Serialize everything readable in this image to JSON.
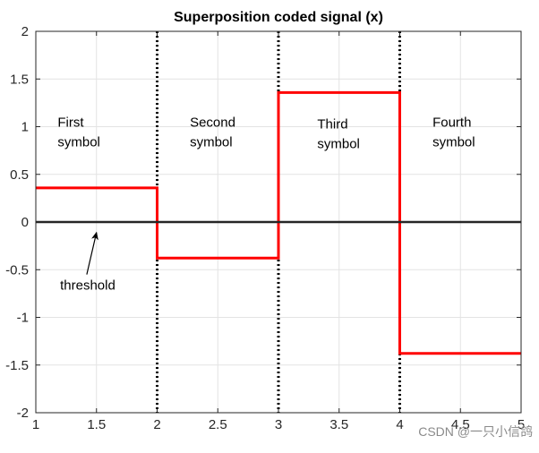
{
  "chart_data": {
    "type": "line",
    "title": "Superposition coded signal (x)",
    "xlabel": "",
    "ylabel": "",
    "xlim": [
      1,
      5
    ],
    "ylim": [
      -2,
      2
    ],
    "grid": true,
    "x_ticks": [
      1,
      1.5,
      2,
      2.5,
      3,
      3.5,
      4,
      4.5,
      5
    ],
    "x_tick_labels": [
      "1",
      "1.5",
      "2",
      "2.5",
      "3",
      "3.5",
      "4",
      "4.5",
      "5"
    ],
    "y_ticks": [
      2,
      1.5,
      1,
      0.5,
      0,
      -0.5,
      -1,
      -1.5,
      -2
    ],
    "y_tick_labels": [
      "2",
      "1.5",
      "1",
      "0.5",
      "0",
      "-0.5",
      "-1",
      "-1.5",
      "-2"
    ],
    "series": [
      {
        "color": "#ff0000",
        "step": true,
        "x": [
          1,
          2,
          2,
          3,
          3,
          4,
          4,
          5
        ],
        "y": [
          0.3578,
          0.3578,
          -0.3773,
          -0.3773,
          1.3578,
          1.3578,
          -1.3773,
          -1.3773
        ]
      },
      {
        "color": "#262626",
        "x": [
          1,
          5
        ],
        "y": [
          0,
          0
        ]
      }
    ],
    "vlines": {
      "x": [
        2,
        3,
        4
      ],
      "style": "dotted",
      "color": "#000000"
    },
    "annotations": [
      {
        "lines": [
          "First",
          "symbol"
        ],
        "x": 1.18,
        "y": 1.0
      },
      {
        "lines": [
          "Second",
          "symbol"
        ],
        "x": 2.27,
        "y": 1.0
      },
      {
        "lines": [
          "Third",
          "symbol"
        ],
        "x": 3.32,
        "y": 0.98
      },
      {
        "lines": [
          "Fourth",
          "symbol"
        ],
        "x": 4.27,
        "y": 1.0
      },
      {
        "lines": [
          "threshold"
        ],
        "x": 1.2,
        "y": -0.71
      }
    ],
    "arrow": {
      "from": [
        1.42,
        -0.55
      ],
      "to": [
        1.5,
        -0.11
      ]
    }
  },
  "watermark": "CSDN @一只小信鸽"
}
